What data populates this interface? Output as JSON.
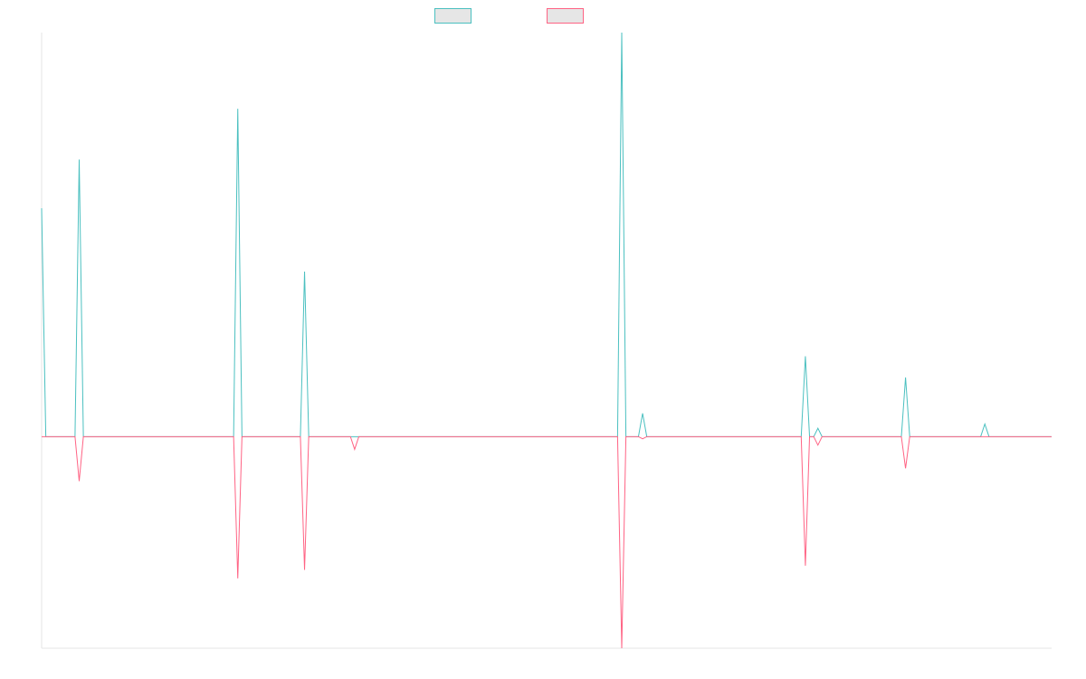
{
  "chart_data": {
    "type": "line",
    "title": "",
    "xlabel": "",
    "ylabel": "",
    "x_count": 243,
    "ylim": [
      -1.0,
      1.91
    ],
    "legend_position": "top-center",
    "grid": false,
    "series": [
      {
        "name": "",
        "color": "#4bc0c0",
        "fill": "#e6e6e6",
        "spikes": [
          [
            0,
            1.08
          ],
          [
            9,
            1.31
          ],
          [
            47,
            1.55
          ],
          [
            63,
            0.78
          ],
          [
            139,
            1.91
          ],
          [
            144,
            0.11
          ],
          [
            183,
            0.38
          ],
          [
            186,
            0.04
          ],
          [
            207,
            0.28
          ],
          [
            226,
            0.06
          ]
        ]
      },
      {
        "name": "",
        "color": "#ff6384",
        "fill": "#e6e6e6",
        "spikes": [
          [
            9,
            -0.21
          ],
          [
            47,
            -0.67
          ],
          [
            63,
            -0.63
          ],
          [
            75,
            -0.06
          ],
          [
            139,
            -1.0
          ],
          [
            144,
            -0.01
          ],
          [
            183,
            -0.61
          ],
          [
            186,
            -0.04
          ],
          [
            207,
            -0.15
          ]
        ]
      }
    ]
  }
}
